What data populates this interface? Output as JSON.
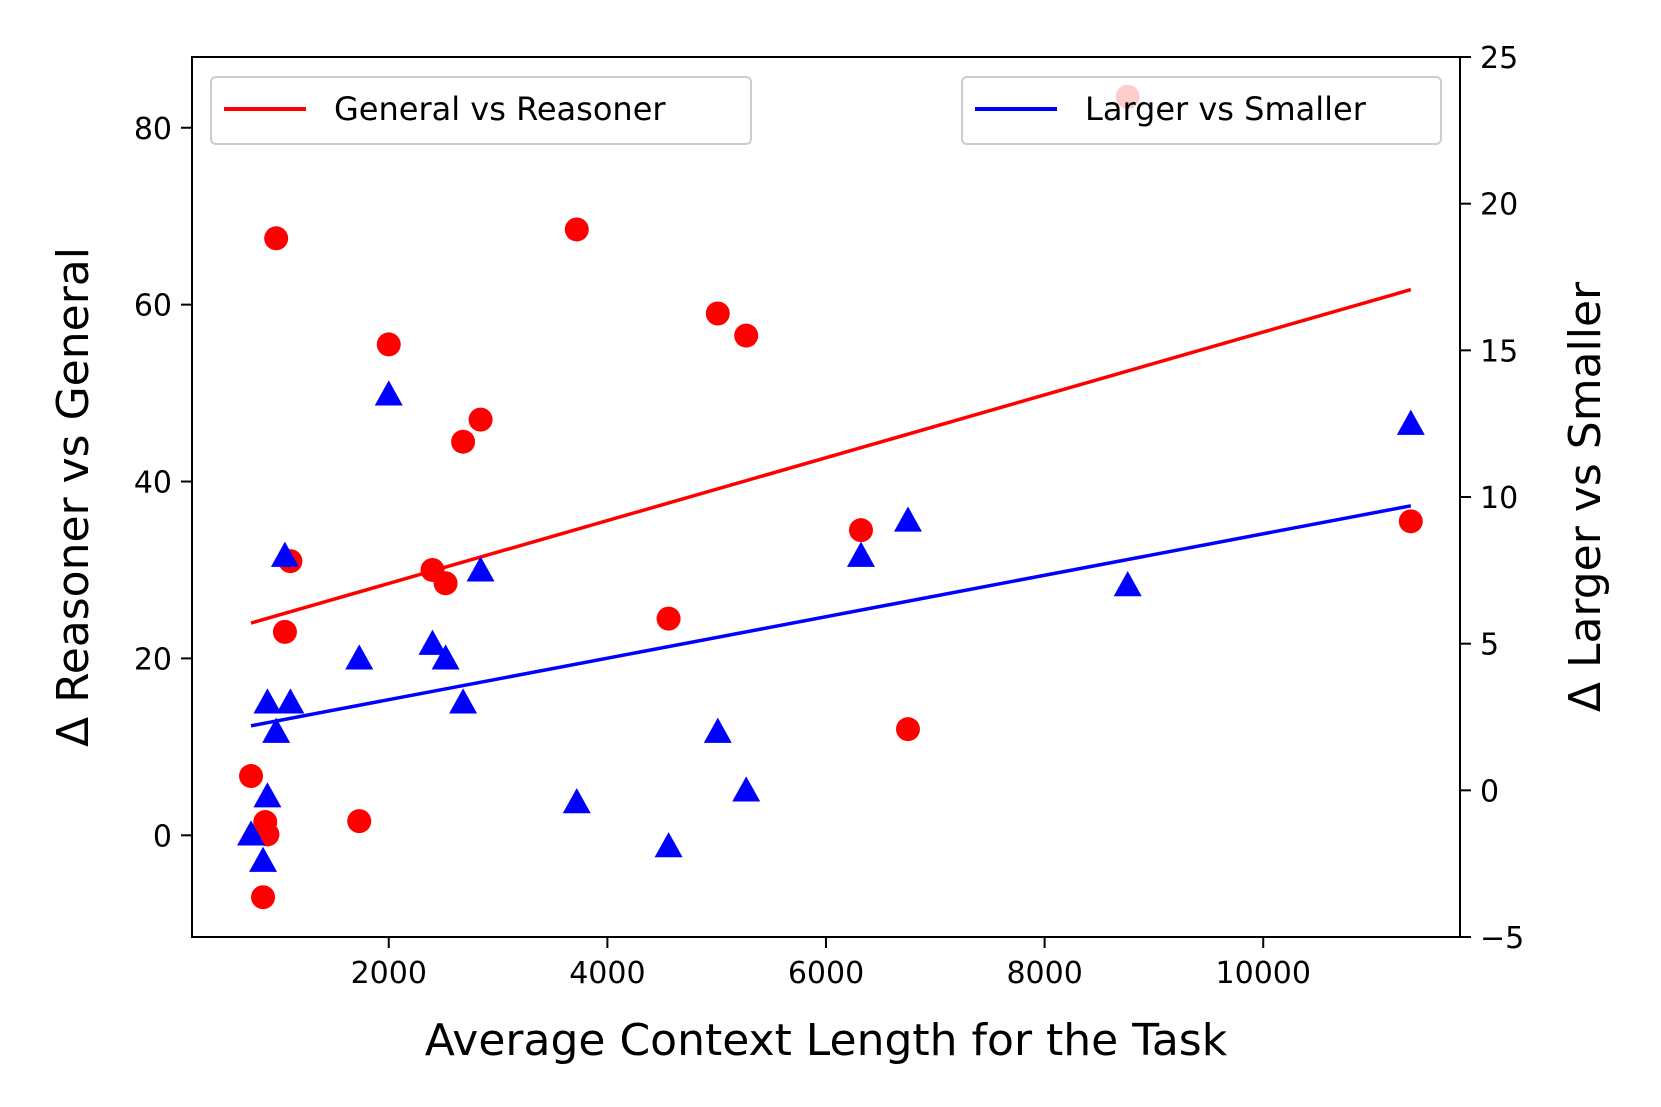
{
  "chart_data": {
    "type": "scatter",
    "xlabel": "Average Context Length for the Task",
    "ylabel_left": "Δ Reasoner vs General",
    "ylabel_right": "Δ Larger vs Smaller",
    "xlim": [
      200,
      11800
    ],
    "ylim_left": [
      -11.5,
      88
    ],
    "ylim_right": [
      -5,
      25
    ],
    "x_ticks": [
      2000,
      4000,
      6000,
      8000,
      10000
    ],
    "y_left_ticks": [
      0,
      20,
      40,
      60,
      80
    ],
    "y_right_ticks": [
      -5,
      0,
      5,
      10,
      15,
      20,
      25
    ],
    "grid": false,
    "series": [
      {
        "name": "General vs Reasoner",
        "axis": "left",
        "marker": "circle",
        "color": "#ff0000",
        "points": [
          [
            740,
            6.7
          ],
          [
            870,
            1.5
          ],
          [
            890,
            0.1
          ],
          [
            850,
            -7.0
          ],
          [
            970,
            67.5
          ],
          [
            1050,
            23.0
          ],
          [
            1100,
            31.0
          ],
          [
            1730,
            1.6
          ],
          [
            2000,
            55.5
          ],
          [
            2400,
            30.0
          ],
          [
            2520,
            28.5
          ],
          [
            2680,
            44.5
          ],
          [
            2840,
            47.0
          ],
          [
            3720,
            68.5
          ],
          [
            4560,
            24.5
          ],
          [
            5010,
            59.0
          ],
          [
            5270,
            56.5
          ],
          [
            6320,
            34.5
          ],
          [
            6750,
            12.0
          ],
          [
            8760,
            83.5
          ],
          [
            11350,
            35.5
          ]
        ],
        "trend": {
          "x": [
            740,
            11350
          ],
          "y": [
            24.0,
            61.7
          ]
        }
      },
      {
        "name": "Larger vs Smaller",
        "axis": "right",
        "marker": "triangle",
        "color": "#0000ff",
        "points": [
          [
            740,
            -1.5
          ],
          [
            850,
            -2.4
          ],
          [
            890,
            -0.2
          ],
          [
            890,
            3.0
          ],
          [
            970,
            2.0
          ],
          [
            1050,
            8.0
          ],
          [
            1100,
            3.0
          ],
          [
            1730,
            4.5
          ],
          [
            2000,
            13.5
          ],
          [
            2400,
            5.0
          ],
          [
            2520,
            4.5
          ],
          [
            2680,
            3.0
          ],
          [
            2840,
            7.5
          ],
          [
            3720,
            -0.4
          ],
          [
            4560,
            -1.9
          ],
          [
            5010,
            2.0
          ],
          [
            5270,
            0.0
          ],
          [
            6320,
            8.0
          ],
          [
            6750,
            9.2
          ],
          [
            8760,
            7.0
          ],
          [
            11350,
            12.5
          ]
        ],
        "trend": {
          "x": [
            740,
            11350
          ],
          "y": [
            2.2,
            9.7
          ]
        }
      }
    ],
    "legends": [
      {
        "label": "General vs Reasoner",
        "position": "top-left",
        "color": "#ff0000"
      },
      {
        "label": "Larger vs Smaller",
        "position": "top-right",
        "color": "#0000ff"
      }
    ]
  }
}
